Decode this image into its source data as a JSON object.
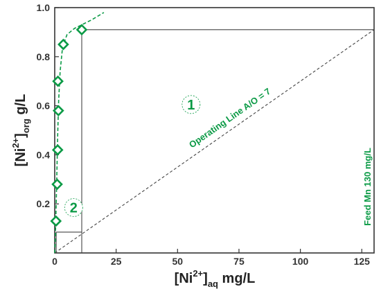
{
  "chart_data": {
    "type": "scatter",
    "xlim": [
      0,
      130
    ],
    "ylim": [
      0,
      1.0
    ],
    "grid": false,
    "x_ticks": [
      "0",
      "25",
      "50",
      "75",
      "100",
      "125"
    ],
    "y_ticks": [
      "0.2",
      "0.4",
      "0.6",
      "0.8",
      "1.0"
    ],
    "x_tick_values": [
      0,
      25,
      50,
      75,
      100,
      125
    ],
    "y_tick_values": [
      0.2,
      0.4,
      0.6,
      0.8,
      1.0
    ],
    "xlabel": {
      "base": "[Ni",
      "sup": "2+",
      "close": "]",
      "sub": "aq",
      "unit": " mg/L"
    },
    "ylabel": {
      "base": "[Ni",
      "sup": "2+",
      "close": "]",
      "sub": "org",
      "unit": " g/L"
    },
    "series": [
      {
        "points": [
          {
            "x": 0.5,
            "y": 0.13
          },
          {
            "x": 1.0,
            "y": 0.28
          },
          {
            "x": 1.2,
            "y": 0.42
          },
          {
            "x": 1.5,
            "y": 0.58
          },
          {
            "x": 1.3,
            "y": 0.7
          },
          {
            "x": 3.5,
            "y": 0.85
          },
          {
            "x": 11.0,
            "y": 0.91
          }
        ],
        "color": "#0a9a45"
      }
    ],
    "isotherm_curve": [
      [
        0.0,
        0.0
      ],
      [
        0.3,
        0.08
      ],
      [
        0.6,
        0.2
      ],
      [
        0.9,
        0.34
      ],
      [
        1.2,
        0.48
      ],
      [
        1.6,
        0.62
      ],
      [
        2.2,
        0.74
      ],
      [
        3.2,
        0.84
      ],
      [
        5.0,
        0.89
      ],
      [
        8.0,
        0.915
      ],
      [
        11.0,
        0.93
      ],
      [
        15.0,
        0.95
      ],
      [
        20.0,
        0.98
      ]
    ],
    "operating_line": {
      "label": "Operating Line A/O = 7",
      "from": [
        0,
        0
      ],
      "to": [
        130,
        0.91
      ]
    },
    "feed_line": {
      "label": "Feed Mn 130 mg/L",
      "x": 130
    },
    "stages": [
      {
        "label": "1",
        "x": 55.5,
        "y": 0.605
      },
      {
        "label": "2",
        "x": 7.7,
        "y": 0.185
      }
    ],
    "stage_steps": {
      "upper_y": 0.91,
      "step_x": 11.0,
      "lower_y": 0.085,
      "lower_step_x": 0.6
    },
    "colors": {
      "accent": "#0a9a45",
      "axis": "#333333",
      "lines": "#444444"
    }
  }
}
